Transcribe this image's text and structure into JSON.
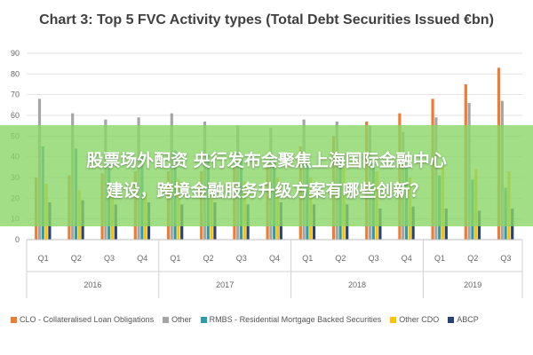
{
  "chart_data": {
    "type": "bar",
    "title": "Chart 3: Top 5 FVC Activity types (Total Debt Securities Issued €bn)",
    "categories": [
      "Q1",
      "Q2",
      "Q3",
      "Q4",
      "Q1",
      "Q2",
      "Q3",
      "Q4",
      "Q1",
      "Q2",
      "Q3",
      "Q4",
      "Q1",
      "Q2",
      "Q3"
    ],
    "groups": [
      {
        "label": "2016",
        "count": 4
      },
      {
        "label": "2017",
        "count": 4
      },
      {
        "label": "2018",
        "count": 4
      },
      {
        "label": "2019",
        "count": 3
      }
    ],
    "ylim": [
      0,
      90
    ],
    "yticks": [
      0,
      10,
      20,
      30,
      40,
      50,
      60,
      70,
      80,
      90
    ],
    "grid": true,
    "legend_position": "bottom",
    "series": [
      {
        "name": "CLO - Collateralised Loan Obligations",
        "color": "#ED7D31",
        "values": [
          30,
          31,
          32,
          33,
          33,
          33,
          35,
          38,
          45,
          50,
          57,
          61,
          68,
          75,
          83
        ]
      },
      {
        "name": "Other",
        "color": "#A5A5A5",
        "values": [
          68,
          61,
          58,
          59,
          61,
          57,
          55,
          54,
          58,
          57,
          55,
          52,
          59,
          66,
          67
        ]
      },
      {
        "name": "RMBS - Residential Mortgage Backed Securities",
        "color": "#2E9CA6",
        "values": [
          45,
          44,
          41,
          40,
          43,
          41,
          39,
          38,
          40,
          38,
          37,
          35,
          31,
          29,
          25
        ]
      },
      {
        "name": "Other CDO",
        "color": "#FFC000",
        "values": [
          27,
          24,
          25,
          23,
          29,
          28,
          28,
          30,
          30,
          35,
          33,
          30,
          36,
          34,
          33
        ]
      },
      {
        "name": "ABCP",
        "color": "#264478",
        "values": [
          18,
          19,
          17,
          18,
          17,
          18,
          17,
          18,
          17,
          17,
          15,
          16,
          15,
          14,
          15
        ]
      }
    ]
  },
  "overlay": {
    "line1": "股票场外配资 央行发布会聚焦上海国际金融中心",
    "line2": "建设，跨境金融服务升级方案有哪些创新？"
  }
}
